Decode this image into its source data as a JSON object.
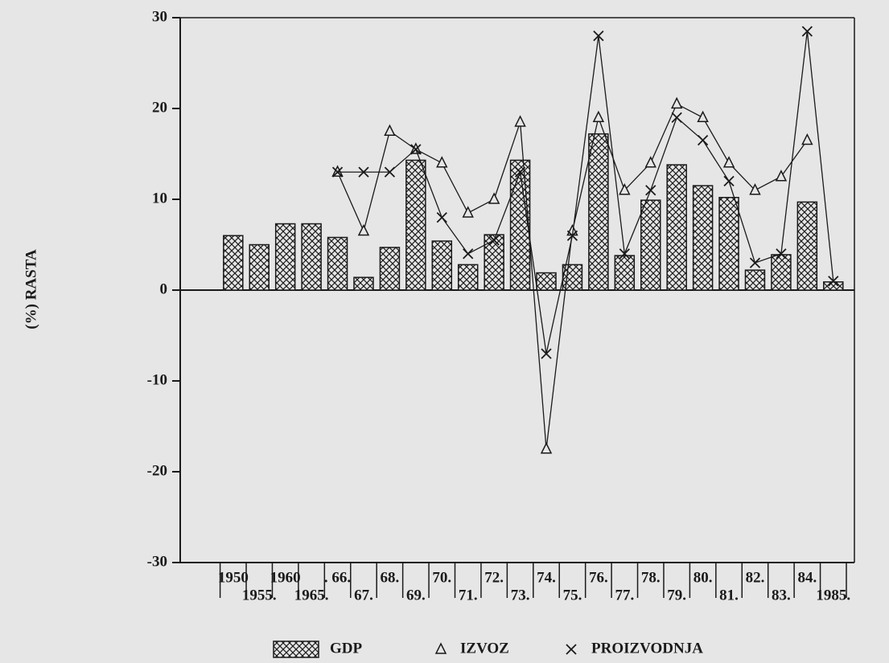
{
  "chart_data": {
    "type": "bar_line",
    "y_label": "(%) RASTA",
    "categories": [
      "1950",
      "1955.",
      "1960",
      "1965.",
      ". 66.",
      "67.",
      "68.",
      "69.",
      "70.",
      "71.",
      "72.",
      "73.",
      "74.",
      "75.",
      "76.",
      "77.",
      "78.",
      "79.",
      "80.",
      "81.",
      "82.",
      "83.",
      "84.",
      "1985."
    ],
    "series": [
      {
        "name": "GDP",
        "kind": "bar",
        "color": "#1a1a1a",
        "values": [
          6.0,
          5.0,
          7.3,
          7.3,
          5.8,
          1.4,
          4.7,
          14.3,
          5.4,
          2.8,
          6.1,
          14.3,
          1.9,
          2.8,
          17.2,
          3.8,
          9.9,
          13.8,
          11.5,
          10.2,
          2.2,
          3.9,
          9.7,
          0.9
        ]
      },
      {
        "name": "IZVOZ",
        "kind": "line",
        "marker": "triangle",
        "color": "#1a1a1a",
        "values": [
          null,
          null,
          null,
          null,
          13,
          6.5,
          17.5,
          15.5,
          14,
          8.5,
          10,
          18.5,
          -17.5,
          6.5,
          19,
          11,
          14,
          20.5,
          19,
          14,
          11,
          12.5,
          16.5,
          null
        ]
      },
      {
        "name": "PROIZVODNJA",
        "kind": "line",
        "marker": "x",
        "color": "#1a1a1a",
        "values": [
          null,
          null,
          null,
          null,
          13,
          13,
          13,
          15.5,
          8,
          4,
          5.5,
          13,
          -7,
          6,
          28,
          4,
          11,
          19,
          16.5,
          12,
          3,
          4,
          28.5,
          1
        ]
      }
    ],
    "ylim": [
      -30,
      30
    ],
    "yticks": [
      -30,
      -20,
      -10,
      0,
      10,
      20,
      30
    ]
  }
}
